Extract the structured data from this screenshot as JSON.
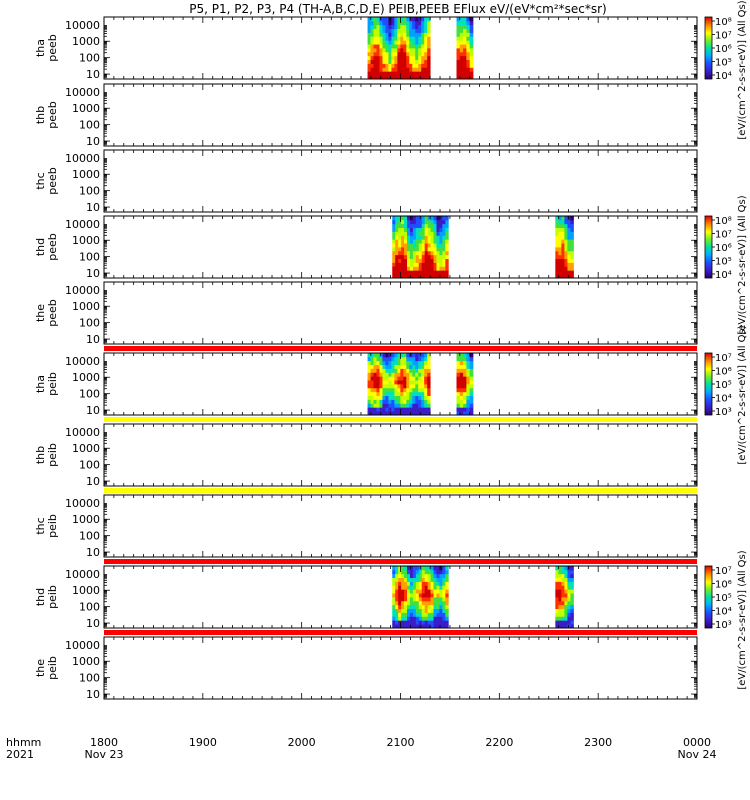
{
  "title": "P5, P1, P2, P3, P4 (TH-A,B,C,D,E) PEIB,PEEB EFlux eV/(eV*cm²*sec*sr)",
  "time_axis": {
    "corner_labels": [
      "hhmm",
      "2021"
    ],
    "ticks": [
      {
        "t": 0,
        "label": "1800",
        "sublabel": "Nov 23"
      },
      {
        "t": 60,
        "label": "1900",
        "sublabel": ""
      },
      {
        "t": 120,
        "label": "2000",
        "sublabel": ""
      },
      {
        "t": 180,
        "label": "2100",
        "sublabel": ""
      },
      {
        "t": 240,
        "label": "2200",
        "sublabel": ""
      },
      {
        "t": 300,
        "label": "2300",
        "sublabel": ""
      },
      {
        "t": 360,
        "label": "0000",
        "sublabel": "Nov 24"
      }
    ]
  },
  "chart_data": {
    "type": "heatmap",
    "x_unit": "minutes since 1800 UT, 2021 Nov 23",
    "xlim": [
      0,
      360
    ],
    "ylim_eV": [
      5,
      30000
    ],
    "y_scale": "log",
    "y_ticks": [
      "10",
      "100",
      "1000",
      "10000"
    ],
    "panels": [
      {
        "probe": "tha",
        "product": "peeb",
        "ylabel": [
          "tha",
          "peeb"
        ],
        "bursts": [
          {
            "start": 160,
            "end": 198
          },
          {
            "start": 214,
            "end": 224
          }
        ],
        "colorbar": "A"
      },
      {
        "probe": "thb",
        "product": "peeb",
        "ylabel": [
          "thb",
          "peeb"
        ],
        "bursts": []
      },
      {
        "probe": "thc",
        "product": "peeb",
        "ylabel": [
          "thc",
          "peeb"
        ],
        "bursts": []
      },
      {
        "probe": "thd",
        "product": "peeb",
        "ylabel": [
          "thd",
          "peeb"
        ],
        "bursts": [
          {
            "start": 175,
            "end": 209
          },
          {
            "start": 274,
            "end": 285
          }
        ],
        "colorbar": "B"
      },
      {
        "probe": "the",
        "product": "peeb",
        "ylabel": [
          "the",
          "peeb"
        ],
        "bursts": [],
        "strip_below": "red"
      },
      {
        "probe": "tha",
        "product": "peib",
        "ylabel": [
          "tha",
          "peib"
        ],
        "bursts": [
          {
            "start": 160,
            "end": 198
          },
          {
            "start": 214,
            "end": 224
          }
        ],
        "colorbar": "C",
        "strip_below": "yellow"
      },
      {
        "probe": "thb",
        "product": "peib",
        "ylabel": [
          "thb",
          "peib"
        ],
        "bursts": [],
        "strip_below": "yellow"
      },
      {
        "probe": "thc",
        "product": "peib",
        "ylabel": [
          "thc",
          "peib"
        ],
        "bursts": [],
        "strip_below": "red"
      },
      {
        "probe": "thd",
        "product": "peib",
        "ylabel": [
          "thd",
          "peib"
        ],
        "bursts": [
          {
            "start": 175,
            "end": 209
          },
          {
            "start": 274,
            "end": 285
          }
        ],
        "colorbar": "D",
        "strip_below": "red"
      },
      {
        "probe": "the",
        "product": "peib",
        "ylabel": [
          "the",
          "peib"
        ],
        "bursts": []
      }
    ],
    "colorbars": [
      {
        "id": "A",
        "ticks": [
          "10⁴",
          "10⁵",
          "10⁶",
          "10⁷",
          "10⁸"
        ]
      },
      {
        "id": "B",
        "ticks": [
          "10⁴",
          "10⁵",
          "10⁶",
          "10⁷",
          "10⁸"
        ]
      },
      {
        "id": "C",
        "ticks": [
          "10³",
          "10⁴",
          "10⁵",
          "10⁶",
          "10⁷"
        ]
      },
      {
        "id": "D",
        "ticks": [
          "10³",
          "10⁴",
          "10⁵",
          "10⁶",
          "10⁷"
        ]
      }
    ],
    "colorbar_titles": [
      "[eV/(cm^2-s-sr-eV)] (All Qs)",
      "[eV/(cm^2-s-sr-eV)] (All Qs)",
      "[eV/(cm^2-s-sr-eV)] (All Qs)",
      "[eV/(cm^2-s-sr-eV)] (All Qs)"
    ],
    "colors": {
      "strip_red": "#ff0000",
      "strip_yellow": "#ffff00",
      "colormap": [
        "#2a006e",
        "#3c1cc8",
        "#1f4fff",
        "#00a0ff",
        "#00e0c0",
        "#40e040",
        "#c0ff00",
        "#ffff00",
        "#ffa000",
        "#ff3000",
        "#d00000"
      ]
    }
  }
}
